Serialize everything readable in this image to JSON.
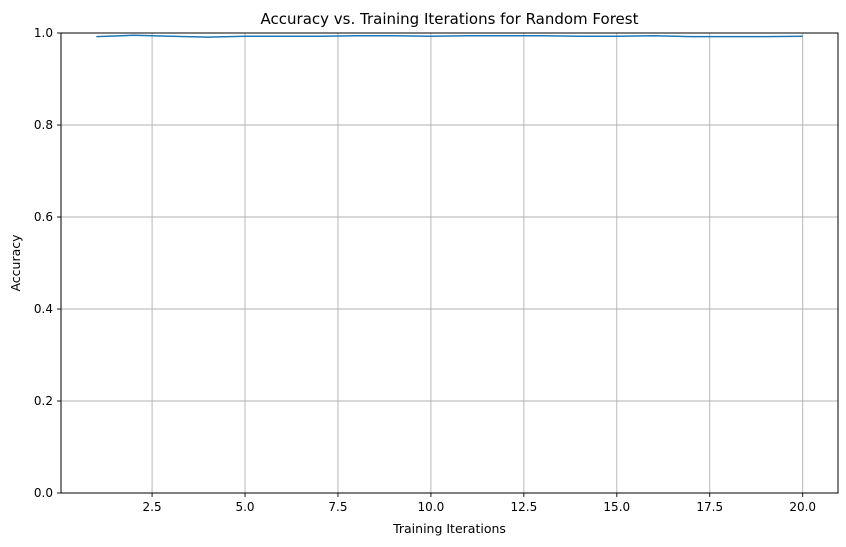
{
  "chart_data": {
    "type": "line",
    "title": "Accuracy vs. Training Iterations for Random Forest",
    "xlabel": "Training Iterations",
    "ylabel": "Accuracy",
    "xlim": [
      0.05,
      20.95
    ],
    "ylim": [
      0.0,
      1.0
    ],
    "grid": true,
    "x_ticks": [
      2.5,
      5.0,
      7.5,
      10.0,
      12.5,
      15.0,
      17.5,
      20.0
    ],
    "x_tick_labels": [
      "2.5",
      "5.0",
      "7.5",
      "10.0",
      "12.5",
      "15.0",
      "17.5",
      "20.0"
    ],
    "y_ticks": [
      0.0,
      0.2,
      0.4,
      0.6,
      0.8,
      1.0
    ],
    "y_tick_labels": [
      "0.0",
      "0.2",
      "0.4",
      "0.6",
      "0.8",
      "1.0"
    ],
    "series": [
      {
        "color": "#1f77b4",
        "x": [
          1,
          2,
          3,
          4,
          5,
          6,
          7,
          8,
          9,
          10,
          11,
          12,
          13,
          14,
          15,
          16,
          17,
          18,
          19,
          20
        ],
        "y": [
          0.992,
          0.995,
          0.993,
          0.991,
          0.993,
          0.993,
          0.993,
          0.994,
          0.994,
          0.993,
          0.994,
          0.994,
          0.994,
          0.993,
          0.993,
          0.994,
          0.992,
          0.992,
          0.992,
          0.993
        ]
      }
    ]
  }
}
